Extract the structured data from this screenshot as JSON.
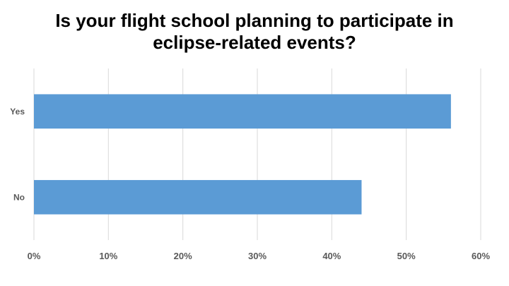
{
  "chart_data": {
    "type": "bar",
    "orientation": "horizontal",
    "title": "Is your flight school planning to participate in\neclipse-related events?",
    "categories": [
      "Yes",
      "No"
    ],
    "values": [
      56,
      44
    ],
    "value_unit": "%",
    "xlim": [
      0,
      60
    ],
    "x_ticks": [
      "0%",
      "10%",
      "20%",
      "30%",
      "40%",
      "50%",
      "60%"
    ],
    "grid": "vertical",
    "legend": "none",
    "colors": {
      "bar": "#5b9bd5",
      "grid": "#d9d9d9",
      "tick_text": "#595959"
    }
  }
}
